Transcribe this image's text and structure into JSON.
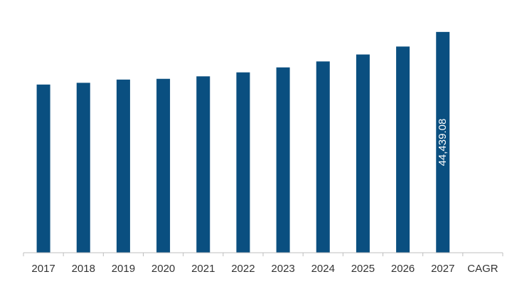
{
  "chart_data": {
    "type": "bar",
    "categories": [
      "2017",
      "2018",
      "2019",
      "2020",
      "2021",
      "2022",
      "2023",
      "2024",
      "2025",
      "2026",
      "2027",
      "CAGR"
    ],
    "values": [
      33850,
      34200,
      34850,
      35000,
      35500,
      36300,
      37300,
      38500,
      39900,
      41500,
      44439.08,
      null
    ],
    "data_labels": [
      "",
      "",
      "",
      "",
      "",
      "",
      "",
      "",
      "",
      "",
      "44,439.08",
      ""
    ],
    "title": "",
    "xlabel": "",
    "ylabel": "",
    "ylim": [
      0,
      48000
    ],
    "grid": false,
    "legend": "none",
    "colors": {
      "bar": "#0a4f80",
      "axis": "#bfbfbf",
      "tick_text": "#333333",
      "data_label_text": "#ffffff"
    }
  }
}
